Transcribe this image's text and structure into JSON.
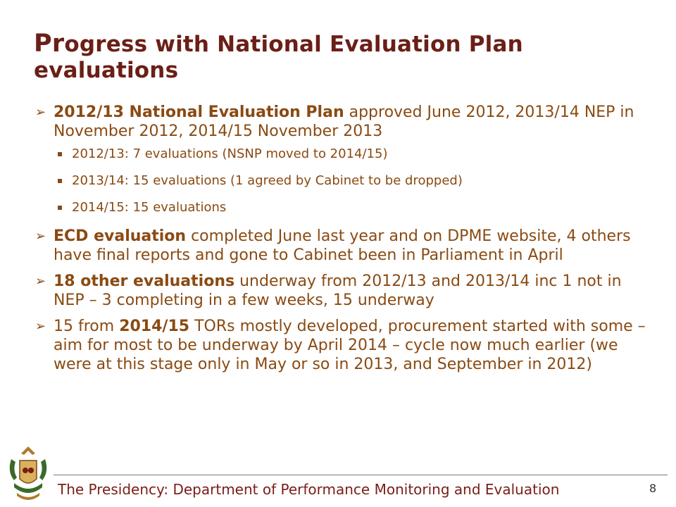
{
  "title": {
    "first_letters": "Pr",
    "rest": "ogress with National Evaluation Plan evaluations"
  },
  "bullets": [
    {
      "bold": "2012/13 National Evaluation Plan",
      "text": " approved June 2012, 2013/14 NEP in November 2012, 2014/15 November 2013",
      "sub": [
        "2012/13: 7 evaluations (NSNP moved to 2014/15)",
        "2013/14: 15 evaluations (1 agreed by Cabinet to be dropped)",
        "2014/15: 15 evaluations"
      ]
    },
    {
      "bold": "ECD evaluation",
      "text": " completed June last year and on DPME website, 4 others have final reports and gone to Cabinet been in Parliament in April"
    },
    {
      "bold": "18 other evaluations",
      "text": " underway from 2012/13 and 2013/14 inc 1 not in NEP – 3 completing in a few weeks, 15 underway"
    },
    {
      "pre": "15 from ",
      "bold": "2014/15",
      "text": " TORs mostly developed, procurement started with some – aim for most to be underway by April 2014 – cycle now much earlier (we were at this stage only in May or so in 2013, and September in 2012)"
    }
  ],
  "footer": {
    "text": "The Presidency: Department of Performance Monitoring and Evaluation",
    "page_number": "8"
  },
  "icons": {
    "logo": "coat-of-arms-icon",
    "bullet": "arrow-bullet-icon",
    "sub_bullet": "square-bullet-icon"
  },
  "colors": {
    "title": "#6b1f17",
    "body": "#8a4a12",
    "footer": "#7a1d18"
  }
}
